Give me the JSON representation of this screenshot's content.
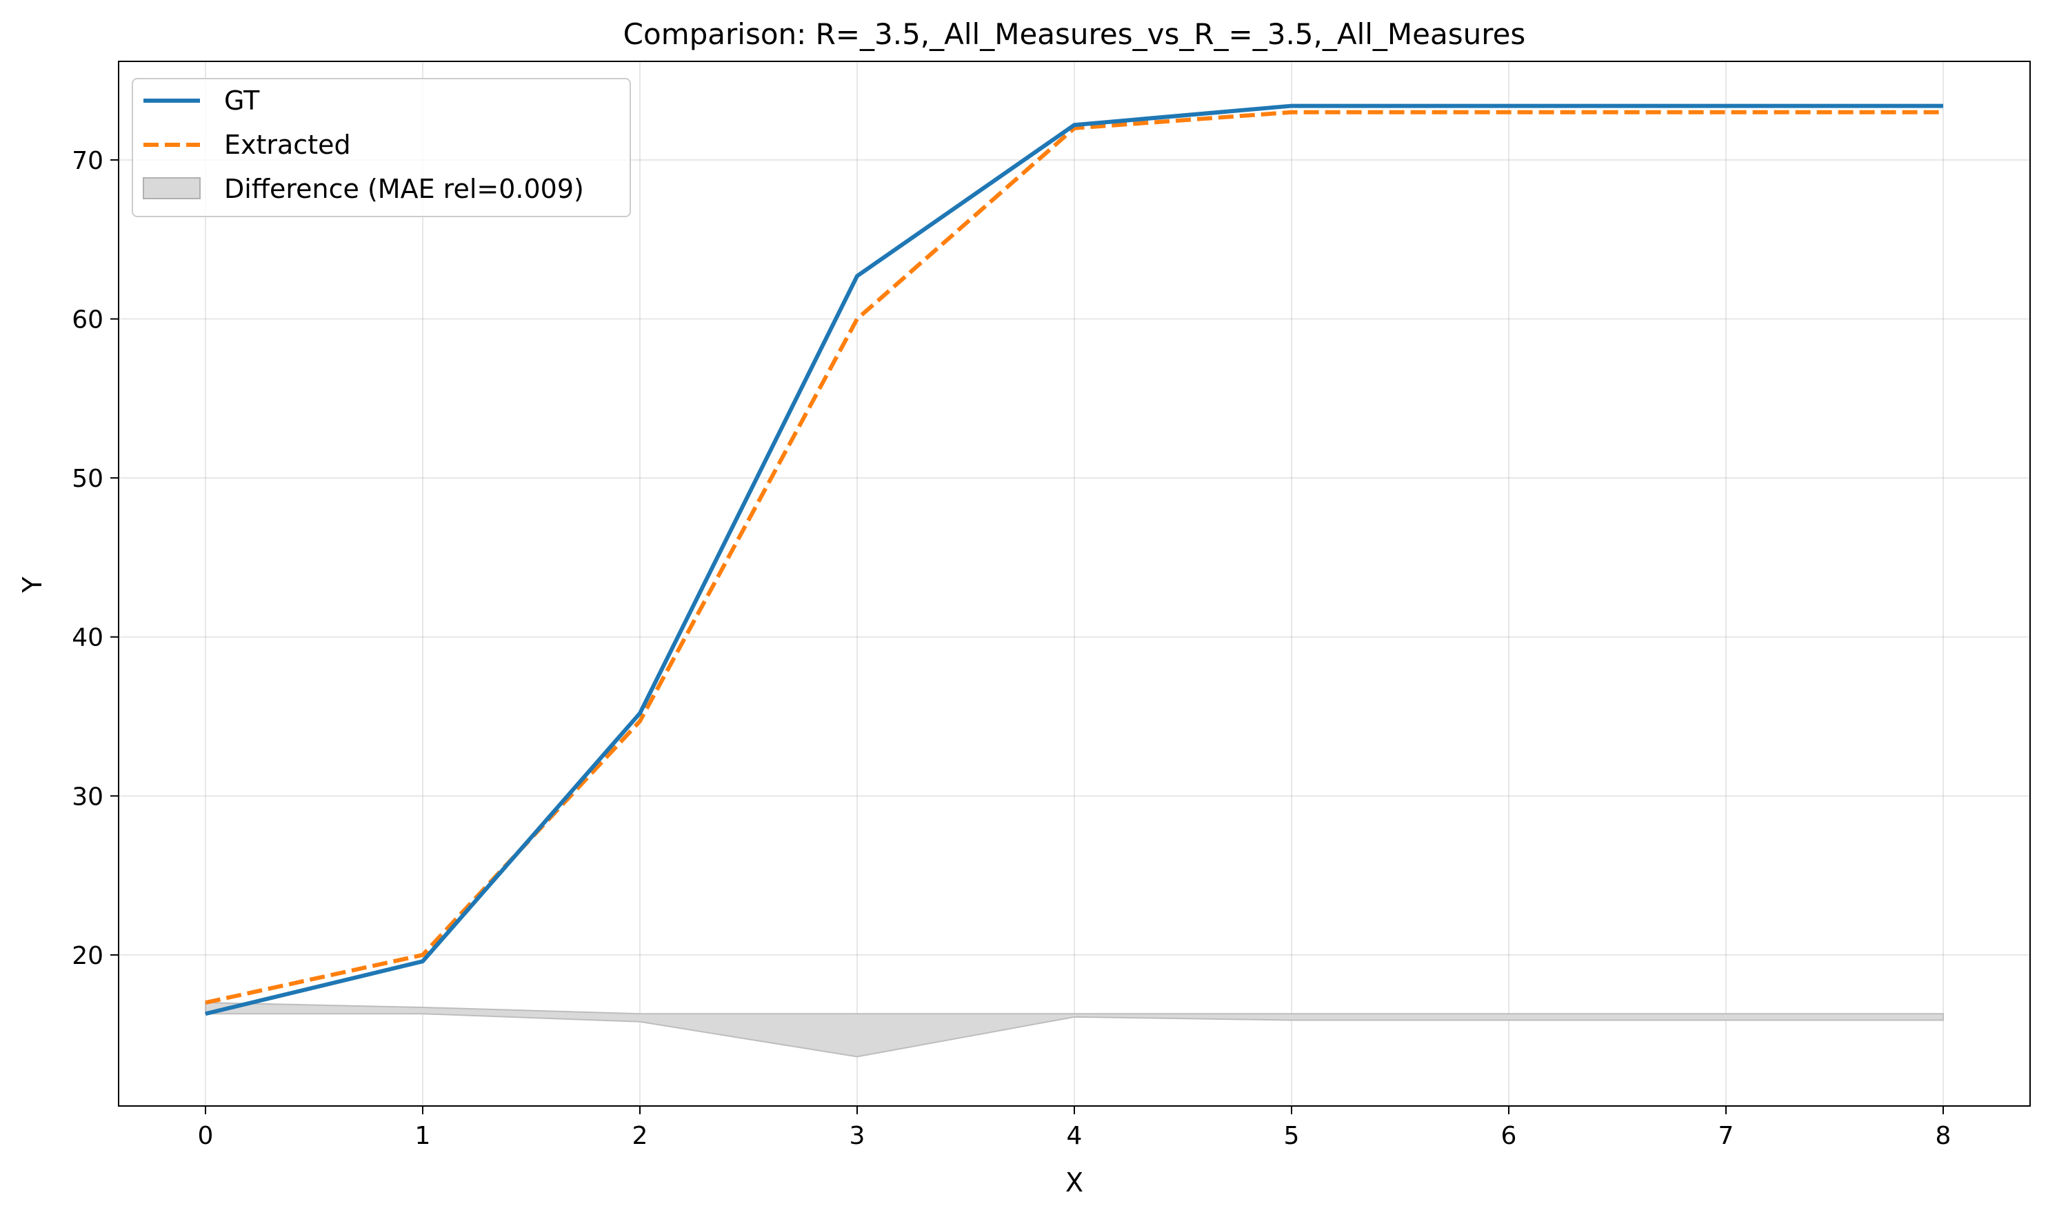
{
  "chart_data": {
    "type": "line",
    "title": "Comparison: R=_3.5,_All_Measures_vs_R_=_3.5,_All_Measures",
    "xlabel": "X",
    "ylabel": "Y",
    "xlim": [
      -0.4,
      8.4
    ],
    "ylim": [
      10.5,
      76.2
    ],
    "x_ticks": [
      0,
      1,
      2,
      3,
      4,
      5,
      6,
      7,
      8
    ],
    "y_ticks": [
      20,
      30,
      40,
      50,
      60,
      70
    ],
    "grid": true,
    "legend_position": "top-left",
    "x": [
      0,
      1,
      2,
      3,
      4,
      5,
      6,
      7,
      8
    ],
    "series": [
      {
        "name": "GT",
        "values": [
          16.3,
          19.6,
          35.2,
          62.7,
          72.2,
          73.4,
          73.4,
          73.4,
          73.4
        ],
        "color": "#1f77b4",
        "style": "solid"
      },
      {
        "name": "Extracted",
        "values": [
          17.0,
          20.0,
          34.7,
          60.0,
          72.0,
          73.0,
          73.0,
          73.0,
          73.0
        ],
        "color": "#ff7f0e",
        "style": "dashed"
      }
    ],
    "difference": {
      "label": "Difference (MAE rel=0.009)",
      "baseline": 16.3,
      "color": "#d9d9d9"
    }
  }
}
